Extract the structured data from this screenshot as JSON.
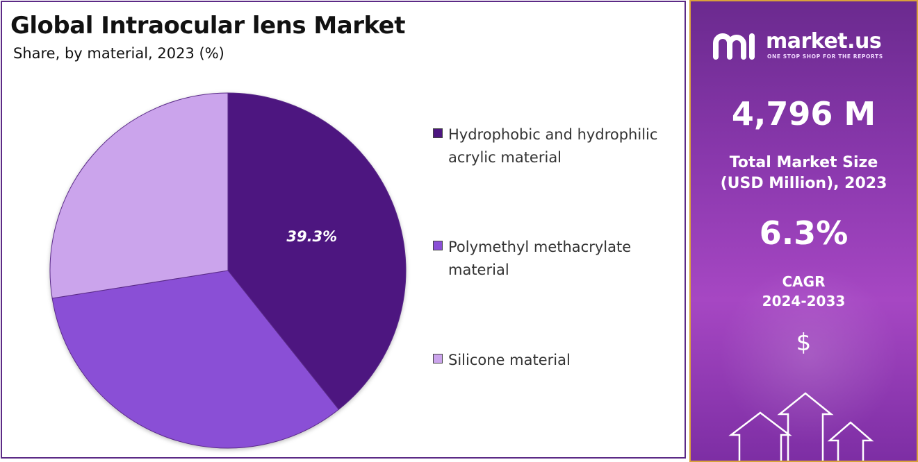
{
  "title": "Global Intraocular lens Market",
  "subtitle": "Share, by material, 2023 (%)",
  "chart_data": {
    "type": "pie",
    "title": "Global Intraocular lens Market",
    "subtitle": "Share, by material, 2023 (%)",
    "slices": [
      {
        "name": "Hydrophobic and hydrophilic acrylic material",
        "value": 39.3,
        "label": "39.3%",
        "color": "#4d1680"
      },
      {
        "name": "Polymethyl methacrylate material",
        "value": 33.2,
        "label": "",
        "color": "#8a4fd6"
      },
      {
        "name": "Silicone material",
        "value": 27.5,
        "label": "",
        "color": "#cba4ec"
      }
    ],
    "legend": "right"
  },
  "sidebar": {
    "brand_name": "market.us",
    "brand_tagline": "ONE STOP SHOP FOR THE REPORTS",
    "market_size_value": "4,796 M",
    "market_size_label_line1": "Total Market Size",
    "market_size_label_line2": "(USD Million), 2023",
    "cagr_value": "6.3%",
    "cagr_label_line1": "CAGR",
    "cagr_label_line2": "2024-2033",
    "currency_symbol": "$"
  },
  "colors": {
    "panel_border": "#5c2a86",
    "sidebar_border": "#d9a23a",
    "sidebar_bg": "#8a38ad"
  }
}
